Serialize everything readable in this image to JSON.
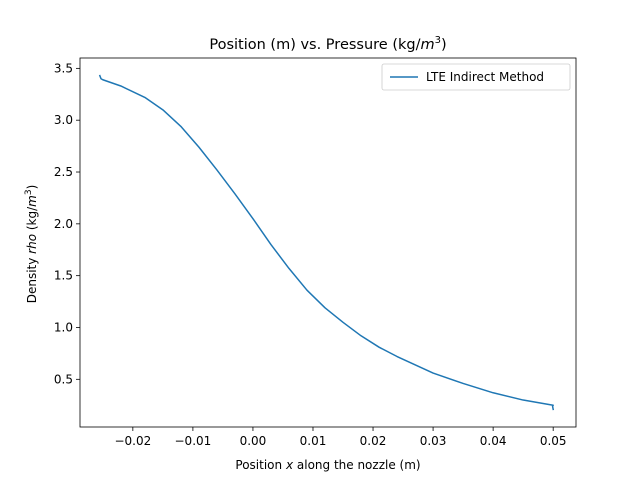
{
  "chart_data": {
    "type": "line",
    "title_parts": {
      "prefix": "Position (m) vs. Pressure (kg/",
      "math_base": "m",
      "superscript": "3",
      "suffix": ")"
    },
    "xlabel_parts": {
      "prefix": "Position ",
      "math_var": "x",
      "suffix": " along the nozzle (m)"
    },
    "ylabel_parts": {
      "prefix": "Density ",
      "math_var": "rho",
      "middle": " (kg/",
      "math_base": "m",
      "superscript": "3",
      "suffix": ")"
    },
    "xlim": [
      -0.0288,
      0.0538
    ],
    "ylim": [
      0.04,
      3.6
    ],
    "xticks": [
      -0.02,
      -0.01,
      0.0,
      0.01,
      0.02,
      0.03,
      0.04,
      0.05
    ],
    "xtick_labels": [
      "−0.02",
      "−0.01",
      "0.00",
      "0.01",
      "0.02",
      "0.03",
      "0.04",
      "0.05"
    ],
    "yticks": [
      0.5,
      1.0,
      1.5,
      2.0,
      2.5,
      3.0,
      3.5
    ],
    "ytick_labels": [
      "0.5",
      "1.0",
      "1.5",
      "2.0",
      "2.5",
      "3.0",
      "3.5"
    ],
    "grid": false,
    "legend_position": "upper right",
    "series": [
      {
        "name": "LTE Indirect Method",
        "color": "#1f77b4",
        "x": [
          -0.0255,
          -0.0253,
          -0.025,
          -0.022,
          -0.018,
          -0.015,
          -0.012,
          -0.009,
          -0.006,
          -0.003,
          0.0,
          0.003,
          0.006,
          0.009,
          0.012,
          0.015,
          0.018,
          0.021,
          0.024,
          0.027,
          0.03,
          0.035,
          0.04,
          0.045,
          0.05,
          0.0499,
          0.05
        ],
        "y": [
          3.43,
          3.4,
          3.39,
          3.33,
          3.22,
          3.1,
          2.94,
          2.74,
          2.52,
          2.29,
          2.05,
          1.8,
          1.57,
          1.36,
          1.19,
          1.05,
          0.92,
          0.81,
          0.72,
          0.64,
          0.56,
          0.46,
          0.37,
          0.3,
          0.25,
          0.24,
          0.21
        ]
      }
    ]
  }
}
